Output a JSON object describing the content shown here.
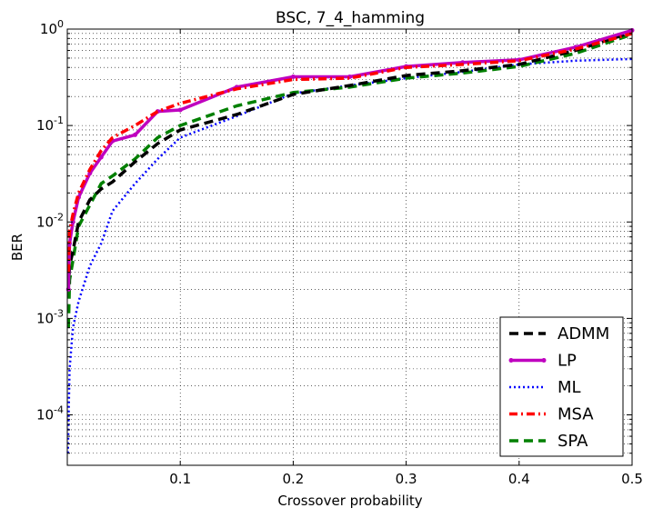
{
  "chart_data": {
    "type": "line",
    "title": "BSC, 7_4_hamming",
    "xlabel": "Crossover probability",
    "ylabel": "BER",
    "xlim": [
      0,
      0.5
    ],
    "ylim": [
      3e-05,
      1
    ],
    "yscale": "log",
    "grid": true,
    "legend_position": "bottom-right",
    "x_ticks": [
      {
        "value": 0.1,
        "label": "0.1"
      },
      {
        "value": 0.2,
        "label": "0.2"
      },
      {
        "value": 0.3,
        "label": "0.3"
      },
      {
        "value": 0.4,
        "label": "0.4"
      },
      {
        "value": 0.5,
        "label": "0.5"
      }
    ],
    "y_ticks": [
      {
        "exp": 0,
        "base": "10",
        "sup": "0"
      },
      {
        "exp": -1,
        "base": "10",
        "sup": "-1"
      },
      {
        "exp": -2,
        "base": "10",
        "sup": "-2"
      },
      {
        "exp": -3,
        "base": "10",
        "sup": "-3"
      },
      {
        "exp": -4,
        "base": "10",
        "sup": "-4"
      }
    ],
    "series": [
      {
        "name": "ADMM",
        "color": "#000000",
        "style": "dashed",
        "x": [
          0.001,
          0.002,
          0.005,
          0.01,
          0.02,
          0.03,
          0.04,
          0.06,
          0.08,
          0.1,
          0.15,
          0.2,
          0.25,
          0.3,
          0.35,
          0.4,
          0.45,
          0.5
        ],
        "y": [
          0.002,
          0.0035,
          0.005,
          0.01,
          0.017,
          0.022,
          0.026,
          0.042,
          0.065,
          0.09,
          0.13,
          0.21,
          0.26,
          0.33,
          0.37,
          0.43,
          0.6,
          0.93
        ]
      },
      {
        "name": "LP",
        "color": "#bf00bf",
        "style": "solid",
        "x": [
          0.001,
          0.002,
          0.005,
          0.01,
          0.02,
          0.03,
          0.04,
          0.06,
          0.08,
          0.1,
          0.15,
          0.2,
          0.25,
          0.3,
          0.35,
          0.4,
          0.45,
          0.5
        ],
        "y": [
          0.002,
          0.006,
          0.01,
          0.018,
          0.032,
          0.047,
          0.069,
          0.08,
          0.14,
          0.145,
          0.25,
          0.32,
          0.32,
          0.41,
          0.45,
          0.48,
          0.65,
          0.97
        ]
      },
      {
        "name": "ML",
        "color": "#0000ff",
        "style": "dotted",
        "x": [
          0.0005,
          0.002,
          0.005,
          0.01,
          0.02,
          0.03,
          0.04,
          0.06,
          0.08,
          0.1,
          0.15,
          0.2,
          0.25,
          0.3,
          0.35,
          0.4,
          0.45,
          0.5
        ],
        "y": [
          4e-05,
          0.0003,
          0.0008,
          0.0015,
          0.0035,
          0.006,
          0.013,
          0.025,
          0.045,
          0.075,
          0.125,
          0.215,
          0.26,
          0.31,
          0.36,
          0.43,
          0.47,
          0.49
        ]
      },
      {
        "name": "MSA",
        "color": "#ff0000",
        "style": "dashdot",
        "x": [
          0.001,
          0.002,
          0.005,
          0.01,
          0.02,
          0.03,
          0.04,
          0.06,
          0.08,
          0.1,
          0.15,
          0.2,
          0.25,
          0.3,
          0.35,
          0.4,
          0.45,
          0.5
        ],
        "y": [
          0.003,
          0.008,
          0.012,
          0.02,
          0.035,
          0.055,
          0.075,
          0.1,
          0.14,
          0.17,
          0.24,
          0.3,
          0.31,
          0.4,
          0.43,
          0.47,
          0.62,
          0.9
        ]
      },
      {
        "name": "SPA",
        "color": "#008000",
        "style": "dashed",
        "x": [
          0.001,
          0.002,
          0.005,
          0.01,
          0.02,
          0.03,
          0.04,
          0.06,
          0.08,
          0.1,
          0.15,
          0.2,
          0.25,
          0.3,
          0.35,
          0.4,
          0.45,
          0.5
        ],
        "y": [
          0.0008,
          0.0025,
          0.004,
          0.009,
          0.015,
          0.025,
          0.03,
          0.045,
          0.075,
          0.1,
          0.16,
          0.22,
          0.25,
          0.31,
          0.35,
          0.41,
          0.56,
          0.88
        ]
      }
    ]
  }
}
